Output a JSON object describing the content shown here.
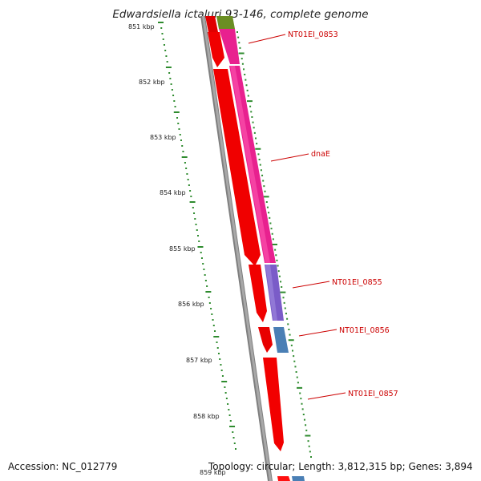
{
  "title": "Edwardsiella ictaluri 93-146, complete genome",
  "footer": {
    "accession": "Accession: NC_012779",
    "stats": "Topology: circular; Length: 3,812,315 bp; Genes: 3,894"
  },
  "scale_labels": [
    "851 kbp",
    "852 kbp",
    "853 kbp",
    "854 kbp",
    "855 kbp",
    "856 kbp",
    "857 kbp",
    "858 kbp",
    "859 kbp"
  ],
  "gene_labels": [
    "NT01EI_0853",
    "dnaE",
    "NT01EI_0855",
    "NT01EI_0856",
    "NT01EI_0857"
  ],
  "colors": {
    "reverse_strand_cds": "#ff0000",
    "NT01EI_0853": "#e8218f",
    "dnaE": "#e8218f",
    "NT01EI_0855": "#7a5cc8",
    "NT01EI_0856": "#4a7fb5",
    "NT01EI_0857": "#ff0000",
    "olive_feature": "#6b8e23",
    "backbone": "#808080",
    "tick": "#2e8b2e",
    "label": "#cc0000"
  }
}
